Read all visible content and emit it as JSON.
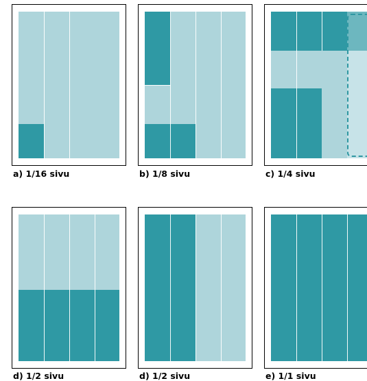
{
  "colors": {
    "dark": "#2f99a4",
    "light": "#aed5db",
    "lighter": "#c7e3e8",
    "mid": "#6db7bf",
    "divider": "#ffffff",
    "border": "#000000"
  },
  "captions": [
    "a) 1/16 sivu",
    "b) 1/8 sivu",
    "c) 1/4 sivu",
    "d) 1/2 sivu",
    "d) 1/2 sivu",
    "e) 1/1 sivu"
  ]
}
